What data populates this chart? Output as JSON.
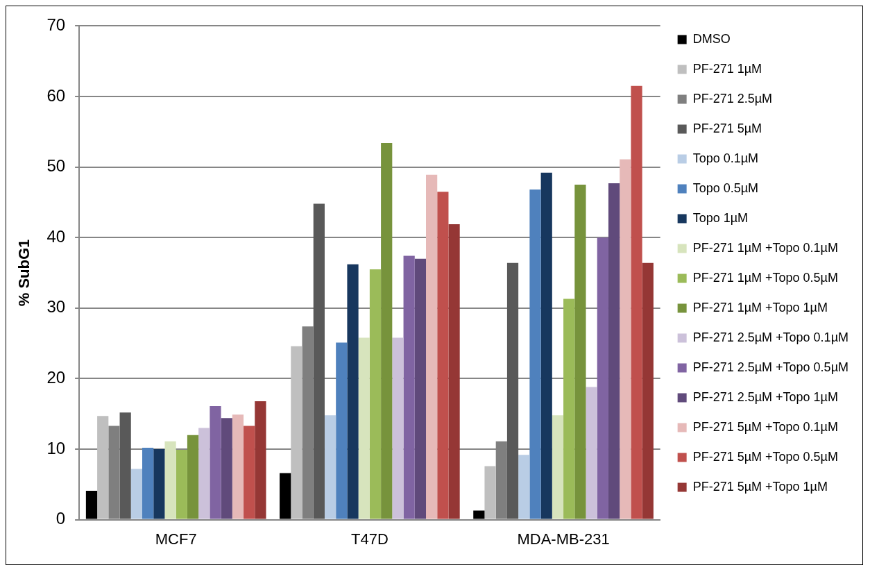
{
  "chart_data": {
    "type": "bar",
    "ylabel": "% SubG1",
    "categories": [
      "MCF7",
      "T47D",
      "MDA-MB-231"
    ],
    "ylim": [
      0,
      70
    ],
    "yticks": [
      0,
      10,
      20,
      30,
      40,
      50,
      60,
      70
    ],
    "grid": "y",
    "legend": "right",
    "series": [
      {
        "name": "DMSO",
        "color": "#000000",
        "values": [
          4.1,
          6.6,
          1.3
        ]
      },
      {
        "name": "PF-271 1µM",
        "color": "#bfbfbf",
        "values": [
          14.7,
          24.6,
          7.6
        ]
      },
      {
        "name": "PF-271 2.5µM",
        "color": "#7f7f7f",
        "values": [
          13.3,
          27.4,
          11.1
        ]
      },
      {
        "name": "PF-271 5µM",
        "color": "#595959",
        "values": [
          15.2,
          44.8,
          36.4
        ]
      },
      {
        "name": "Topo 0.1µM",
        "color": "#b9cde5",
        "values": [
          7.2,
          14.8,
          9.2
        ]
      },
      {
        "name": "Topo 0.5µM",
        "color": "#4f81bd",
        "values": [
          10.2,
          25.1,
          46.8
        ]
      },
      {
        "name": "Topo 1µM",
        "color": "#17375e",
        "values": [
          10.0,
          36.2,
          49.2
        ]
      },
      {
        "name": "PF-271 1µM +Topo 0.1µM",
        "color": "#d7e4bd",
        "values": [
          11.1,
          25.8,
          14.8
        ]
      },
      {
        "name": "PF-271 1µM +Topo 0.5µM",
        "color": "#9bbb59",
        "values": [
          9.9,
          35.5,
          31.3
        ]
      },
      {
        "name": "PF-271 1µM +Topo 1µM",
        "color": "#77933c",
        "values": [
          12.0,
          53.4,
          47.5
        ]
      },
      {
        "name": "PF-271 2.5µM +Topo 0.1µM",
        "color": "#ccc1da",
        "values": [
          13.0,
          25.8,
          18.8
        ]
      },
      {
        "name": "PF-271 2.5µM +Topo 0.5µM",
        "color": "#8064a2",
        "values": [
          16.1,
          37.4,
          40.0
        ]
      },
      {
        "name": "PF-271 2.5µM +Topo 1µM",
        "color": "#604a7b",
        "values": [
          14.4,
          37.0,
          47.7
        ]
      },
      {
        "name": "PF-271 5µM +Topo 0.1µM",
        "color": "#e6b9b8",
        "values": [
          14.9,
          48.9,
          51.1
        ]
      },
      {
        "name": "PF-271 5µM +Topo 0.5µM",
        "color": "#c0504d",
        "values": [
          13.3,
          46.5,
          61.5
        ]
      },
      {
        "name": "PF-271 5µM +Topo 1µM",
        "color": "#953735",
        "values": [
          16.8,
          41.9,
          36.4
        ]
      }
    ]
  }
}
